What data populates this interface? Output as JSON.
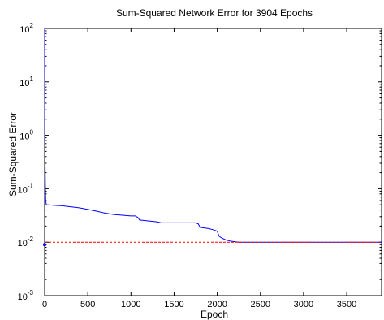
{
  "chart_data": {
    "type": "line",
    "title": "Sum-Squared Network Error for 3904 Epochs",
    "xlabel": "Epoch",
    "ylabel": "Sum-Squared Error",
    "xlim": [
      0,
      3904
    ],
    "ylim": [
      0.001,
      100
    ],
    "yscale": "log",
    "grid": false,
    "x_ticks": [
      0,
      500,
      1000,
      1500,
      2000,
      2500,
      3000,
      3500
    ],
    "x_tick_labels": [
      "0",
      "500",
      "1000",
      "1500",
      "2000",
      "2500",
      "3000",
      "3500"
    ],
    "y_ticks": [
      0.001,
      0.01,
      0.1,
      1,
      10,
      100
    ],
    "y_tick_labels": [
      {
        "base": "10",
        "exp": "-3"
      },
      {
        "base": "10",
        "exp": "-2"
      },
      {
        "base": "10",
        "exp": "-1"
      },
      {
        "base": "10",
        "exp": "0"
      },
      {
        "base": "10",
        "exp": "1"
      },
      {
        "base": "10",
        "exp": "2"
      }
    ],
    "series": [
      {
        "color": "#0000ff",
        "style": "solid",
        "x": [
          0,
          2,
          5,
          8,
          12,
          20,
          40,
          100,
          200,
          300,
          400,
          500,
          600,
          700,
          800,
          900,
          1000,
          1050,
          1080,
          1100,
          1200,
          1300,
          1350,
          1400,
          1500,
          1600,
          1700,
          1750,
          1780,
          1800,
          1900,
          1960,
          2000,
          2020,
          2050,
          2100,
          2150,
          2200,
          2250,
          2500,
          3000,
          3500,
          3904
        ],
        "y": [
          100,
          1.5,
          0.3,
          0.12,
          0.06,
          0.05,
          0.05,
          0.049,
          0.048,
          0.046,
          0.044,
          0.041,
          0.038,
          0.035,
          0.033,
          0.032,
          0.031,
          0.031,
          0.029,
          0.026,
          0.025,
          0.024,
          0.023,
          0.023,
          0.023,
          0.023,
          0.023,
          0.023,
          0.022,
          0.019,
          0.018,
          0.017,
          0.016,
          0.013,
          0.012,
          0.011,
          0.0105,
          0.0102,
          0.01,
          0.01,
          0.01,
          0.01,
          0.01
        ]
      },
      {
        "color": "#ff0000",
        "style": "dashed",
        "x": [
          0,
          3904
        ],
        "y": [
          0.01,
          0.01
        ]
      }
    ],
    "markers": [
      {
        "x": 0,
        "y": 0.009,
        "color": "#0000ff"
      }
    ]
  }
}
